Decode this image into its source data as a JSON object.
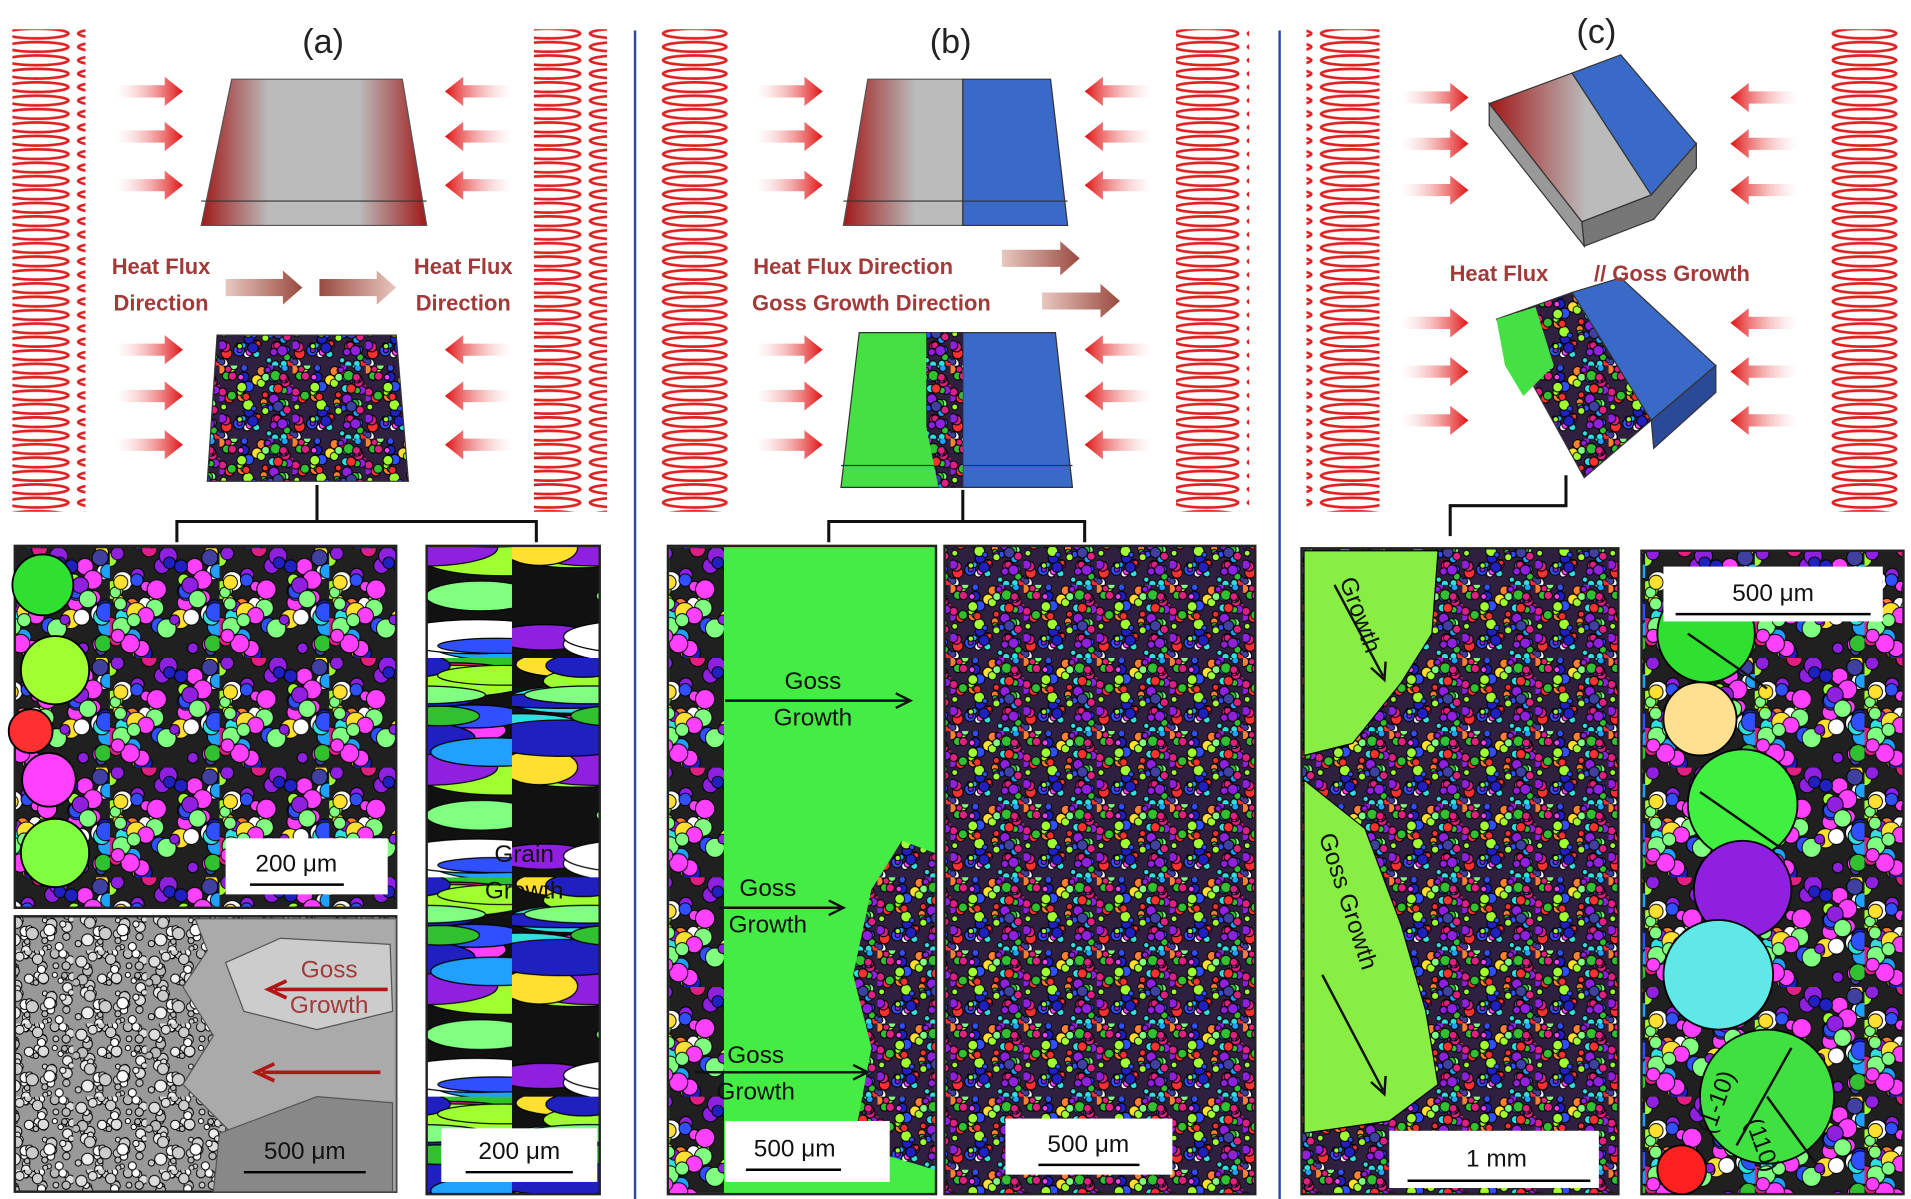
{
  "panels": [
    {
      "label": "(a)",
      "schematic_text": [
        "Heat Flux",
        "Direction",
        "Heat Flux",
        "Direction"
      ],
      "micrographs": [
        {
          "scale_bar": "200 μm"
        },
        {
          "scale_bar": "500 μm",
          "annotations": [
            "Goss",
            "Growth"
          ]
        },
        {
          "scale_bar": "200 μm",
          "annotations": [
            "Grain",
            "Growth"
          ]
        }
      ]
    },
    {
      "label": "(b)",
      "schematic_text": [
        "Heat Flux Direction",
        "Goss Growth Direction"
      ],
      "micrographs": [
        {
          "scale_bar": "500 μm",
          "annotations": [
            "Goss",
            "Growth",
            "Goss",
            "Growth",
            "Goss",
            "Growth"
          ]
        },
        {
          "scale_bar": "500 μm"
        }
      ]
    },
    {
      "label": "(c)",
      "schematic_text": [
        "Heat Flux",
        "// Goss Growth"
      ],
      "micrographs": [
        {
          "scale_bar": "1 mm",
          "annotations": [
            "Growth",
            "Goss Growth"
          ]
        },
        {
          "scale_bar": "500 μm",
          "annotations": [
            "(1-10)",
            "(110)"
          ]
        }
      ]
    }
  ]
}
